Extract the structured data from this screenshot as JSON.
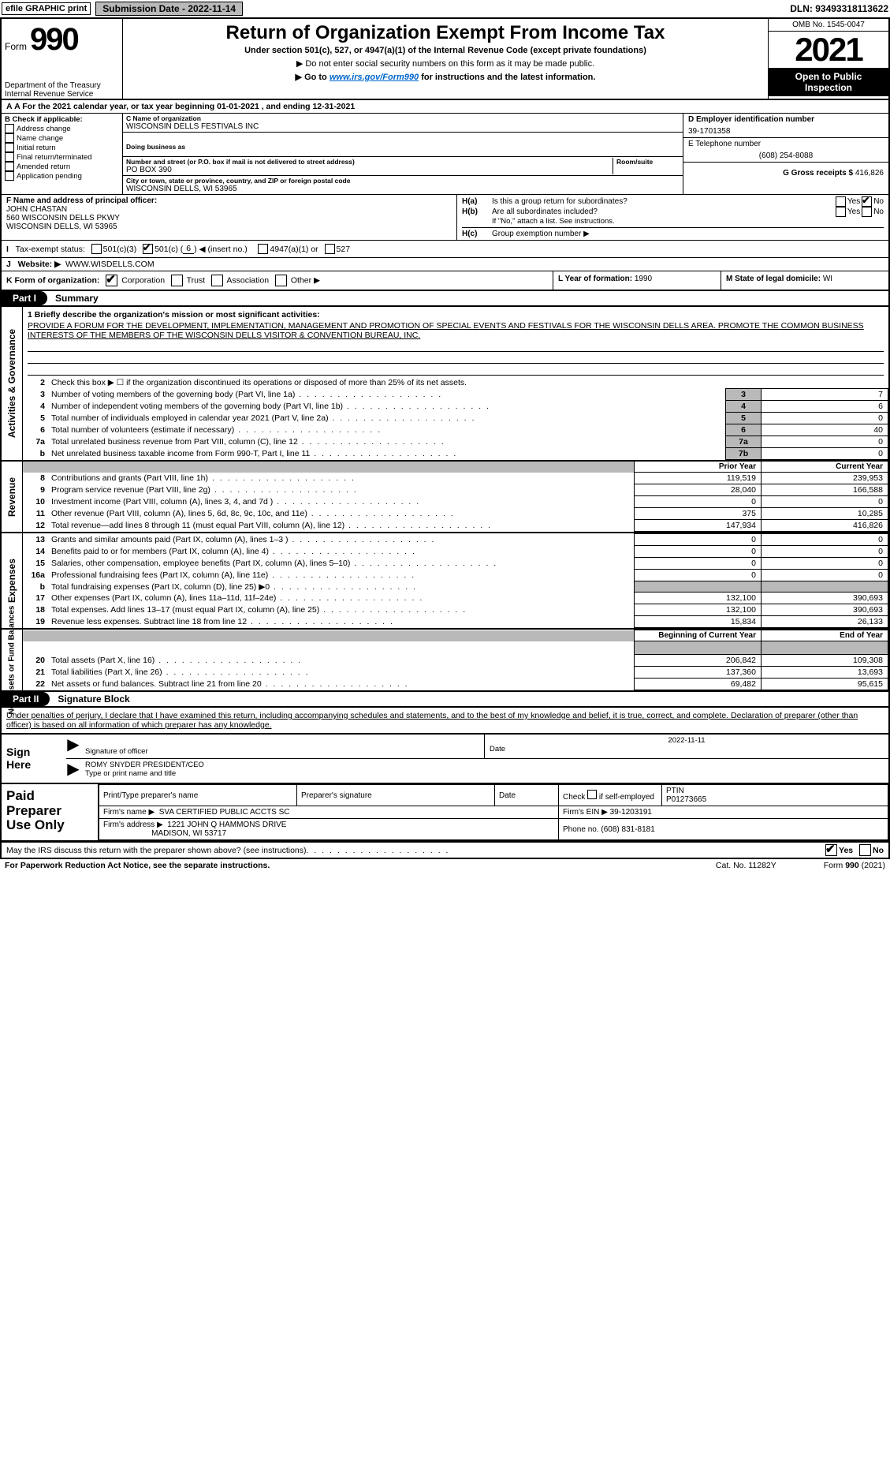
{
  "top": {
    "efile_l": "efile GRAPHIC print",
    "efile_r": "Submission Date - 2022-11-14",
    "dln": "DLN: 93493318113622"
  },
  "header": {
    "form_word": "Form",
    "form_num": "990",
    "title": "Return of Organization Exempt From Income Tax",
    "sub": "Under section 501(c), 527, or 4947(a)(1) of the Internal Revenue Code (except private foundations)",
    "note": "▶ Do not enter social security numbers on this form as it may be made public.",
    "goto_pre": "▶ Go to ",
    "goto_link": "www.irs.gov/Form990",
    "goto_post": " for instructions and the latest information.",
    "dept1": "Department of the Treasury",
    "dept2": "Internal Revenue Service",
    "omb": "OMB No. 1545-0047",
    "year": "2021",
    "open1": "Open to Public",
    "open2": "Inspection"
  },
  "calyear": "A For the 2021 calendar year, or tax year beginning 01-01-2021     , and ending 12-31-2021",
  "boxB": {
    "hdr": "B Check if applicable:",
    "items": [
      "Address change",
      "Name change",
      "Initial return",
      "Final return/terminated",
      "Amended return",
      "Application pending"
    ]
  },
  "boxC": {
    "c_label": "C Name of organization",
    "c_val": "WISCONSIN DELLS FESTIVALS INC",
    "dba_label": "Doing business as",
    "dba_val": "",
    "addr_label": "Number and street (or P.O. box if mail is not delivered to street address)",
    "room_label": "Room/suite",
    "addr_val": "PO BOX 390",
    "city_label": "City or town, state or province, country, and ZIP or foreign postal code",
    "city_val": "WISCONSIN DELLS, WI  53965"
  },
  "boxD": {
    "d_label": "D Employer identification number",
    "d_val": "39-1701358",
    "e_label": "E Telephone number",
    "e_val": "(608) 254-8088",
    "g_label": "G Gross receipts $",
    "g_val": "416,826"
  },
  "boxF": {
    "f_label": "F Name and address of principal officer:",
    "f_name": "JOHN CHASTAN",
    "f_addr1": "560 WISCONSIN DELLS PKWY",
    "f_addr2": "WISCONSIN DELLS, WI  53965"
  },
  "boxH": {
    "ha_l": "H(a)",
    "ha_t": "Is this a group return for subordinates?",
    "hb_l": "H(b)",
    "hb_t": "Are all subordinates included?",
    "hb_note": "If \"No,\" attach a list. See instructions.",
    "hc_l": "H(c)",
    "hc_t": "Group exemption number ▶",
    "yes": "Yes",
    "no": "No"
  },
  "boxI": {
    "label": "Tax-exempt status:",
    "o1": "501(c)(3)",
    "o2a": "501(c) (",
    "o2n": "6",
    "o2b": ") ◀ (insert no.)",
    "o3": "4947(a)(1) or",
    "o4": "527"
  },
  "boxJ": {
    "label": "Website: ▶",
    "val": "WWW.WISDELLS.COM"
  },
  "boxK": {
    "label": "K Form of organization:",
    "o1": "Corporation",
    "o2": "Trust",
    "o3": "Association",
    "o4": "Other ▶",
    "l_label": "L Year of formation:",
    "l_val": "1990",
    "m_label": "M State of legal domicile:",
    "m_val": "WI"
  },
  "parts": {
    "p1": "Part I",
    "p1t": "Summary",
    "p2": "Part II",
    "p2t": "Signature Block"
  },
  "vtabs": {
    "gov": "Activities & Governance",
    "rev": "Revenue",
    "exp": "Expenses",
    "net": "Net Assets or\nFund Balances"
  },
  "mission": {
    "l1": "1 Briefly describe the organization's mission or most significant activities:",
    "text": "PROVIDE A FORUM FOR THE DEVELOPMENT, IMPLEMENTATION, MANAGEMENT AND PROMOTION OF SPECIAL EVENTS AND FESTIVALS FOR THE WISCONSIN DELLS AREA. PROMOTE THE COMMON BUSINESS INTERESTS OF THE MEMBERS OF THE WISCONSIN DELLS VISITOR & CONVENTION BUREAU, INC."
  },
  "gov_lines": [
    {
      "n": "2",
      "t": "Check this box ▶ ☐ if the organization discontinued its operations or disposed of more than 25% of its net assets.",
      "box": "",
      "v": ""
    },
    {
      "n": "3",
      "t": "Number of voting members of the governing body (Part VI, line 1a)",
      "box": "3",
      "v": "7"
    },
    {
      "n": "4",
      "t": "Number of independent voting members of the governing body (Part VI, line 1b)",
      "box": "4",
      "v": "6"
    },
    {
      "n": "5",
      "t": "Total number of individuals employed in calendar year 2021 (Part V, line 2a)",
      "box": "5",
      "v": "0"
    },
    {
      "n": "6",
      "t": "Total number of volunteers (estimate if necessary)",
      "box": "6",
      "v": "40"
    },
    {
      "n": "7a",
      "t": "Total unrelated business revenue from Part VIII, column (C), line 12",
      "box": "7a",
      "v": "0"
    },
    {
      "n": "b",
      "t": "Net unrelated business taxable income from Form 990-T, Part I, line 11",
      "box": "7b",
      "v": "0"
    }
  ],
  "colhdrs": {
    "prior": "Prior Year",
    "current": "Current Year",
    "boy": "Beginning of Current Year",
    "eoy": "End of Year"
  },
  "rev_lines": [
    {
      "n": "8",
      "t": "Contributions and grants (Part VIII, line 1h)",
      "p": "119,519",
      "c": "239,953"
    },
    {
      "n": "9",
      "t": "Program service revenue (Part VIII, line 2g)",
      "p": "28,040",
      "c": "166,588"
    },
    {
      "n": "10",
      "t": "Investment income (Part VIII, column (A), lines 3, 4, and 7d )",
      "p": "0",
      "c": "0"
    },
    {
      "n": "11",
      "t": "Other revenue (Part VIII, column (A), lines 5, 6d, 8c, 9c, 10c, and 11e)",
      "p": "375",
      "c": "10,285"
    },
    {
      "n": "12",
      "t": "Total revenue—add lines 8 through 11 (must equal Part VIII, column (A), line 12)",
      "p": "147,934",
      "c": "416,826"
    }
  ],
  "exp_lines": [
    {
      "n": "13",
      "t": "Grants and similar amounts paid (Part IX, column (A), lines 1–3 )",
      "p": "0",
      "c": "0"
    },
    {
      "n": "14",
      "t": "Benefits paid to or for members (Part IX, column (A), line 4)",
      "p": "0",
      "c": "0"
    },
    {
      "n": "15",
      "t": "Salaries, other compensation, employee benefits (Part IX, column (A), lines 5–10)",
      "p": "0",
      "c": "0"
    },
    {
      "n": "16a",
      "t": "Professional fundraising fees (Part IX, column (A), line 11e)",
      "p": "0",
      "c": "0"
    },
    {
      "n": "b",
      "t": "Total fundraising expenses (Part IX, column (D), line 25) ▶0",
      "p": "",
      "c": "",
      "grey": true
    },
    {
      "n": "17",
      "t": "Other expenses (Part IX, column (A), lines 11a–11d, 11f–24e)",
      "p": "132,100",
      "c": "390,693"
    },
    {
      "n": "18",
      "t": "Total expenses. Add lines 13–17 (must equal Part IX, column (A), line 25)",
      "p": "132,100",
      "c": "390,693"
    },
    {
      "n": "19",
      "t": "Revenue less expenses. Subtract line 18 from line 12",
      "p": "15,834",
      "c": "26,133"
    }
  ],
  "net_lines": [
    {
      "n": "20",
      "t": "Total assets (Part X, line 16)",
      "p": "206,842",
      "c": "109,308"
    },
    {
      "n": "21",
      "t": "Total liabilities (Part X, line 26)",
      "p": "137,360",
      "c": "13,693"
    },
    {
      "n": "22",
      "t": "Net assets or fund balances. Subtract line 21 from line 20",
      "p": "69,482",
      "c": "95,615"
    }
  ],
  "penalty": "Under penalties of perjury, I declare that I have examined this return, including accompanying schedules and statements, and to the best of my knowledge and belief, it is true, correct, and complete. Declaration of preparer (other than officer) is based on all information of which preparer has any knowledge.",
  "sign": {
    "here1": "Sign",
    "here2": "Here",
    "sig_label": "Signature of officer",
    "date_label": "Date",
    "date_val": "2022-11-11",
    "name_val": "ROMY SNYDER  PRESIDENT/CEO",
    "name_label": "Type or print name and title"
  },
  "prep": {
    "l1": "Paid",
    "l2": "Preparer",
    "l3": "Use Only",
    "h1": "Print/Type preparer's name",
    "h2": "Preparer's signature",
    "h3": "Date",
    "h4a": "Check",
    "h4b": "if self-employed",
    "h5": "PTIN",
    "ptin": "P01273665",
    "firm_name_l": "Firm's name   ▶",
    "firm_name": "SVA CERTIFIED PUBLIC ACCTS SC",
    "firm_ein_l": "Firm's EIN ▶",
    "firm_ein": "39-1203191",
    "firm_addr_l": "Firm's address ▶",
    "firm_addr1": "1221 JOHN Q HAMMONS DRIVE",
    "firm_addr2": "MADISON, WI  53717",
    "phone_l": "Phone no.",
    "phone": "(608) 831-8181"
  },
  "footer": {
    "discuss": "May the IRS discuss this return with the preparer shown above? (see instructions)",
    "yes": "Yes",
    "no": "No",
    "pra": "For Paperwork Reduction Act Notice, see the separate instructions.",
    "cat": "Cat. No. 11282Y",
    "form": "Form 990 (2021)"
  }
}
